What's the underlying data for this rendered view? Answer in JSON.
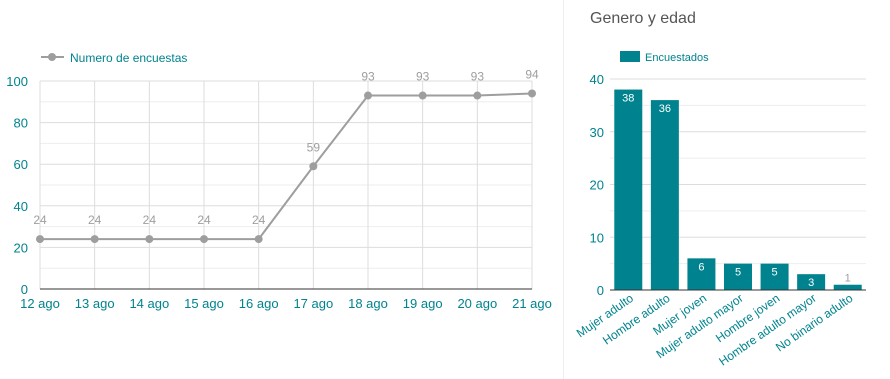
{
  "charts": {
    "left": {
      "legend_label": "Numero de encuestas",
      "line_color": "#9e9e9e",
      "axis_label_color": "#00838f"
    },
    "right": {
      "title": "Genero y edad",
      "legend_label": "Encuestados",
      "bar_color": "#00838f"
    }
  },
  "chart_data": [
    {
      "type": "line",
      "x": [
        "12 ago",
        "13 ago",
        "14 ago",
        "15 ago",
        "16 ago",
        "17 ago",
        "18 ago",
        "19 ago",
        "20 ago",
        "21 ago"
      ],
      "series": [
        {
          "name": "Numero de encuestas",
          "values": [
            24,
            24,
            24,
            24,
            24,
            59,
            93,
            93,
            93,
            94
          ]
        }
      ],
      "ylim": [
        0,
        100
      ],
      "yticks": [
        0,
        20,
        40,
        60,
        80,
        100
      ],
      "grid": true,
      "legend_position": "top-left"
    },
    {
      "type": "bar",
      "title": "Genero y edad",
      "categories": [
        "Mujer adulto",
        "Hombre adulto",
        "Mujer joven",
        "Mujer adulto mayor",
        "Hombre joven",
        "Hombre adulto mayor",
        "No binario adulto"
      ],
      "series": [
        {
          "name": "Encuestados",
          "values": [
            38,
            36,
            6,
            5,
            5,
            3,
            1
          ]
        }
      ],
      "ylim": [
        0,
        40
      ],
      "yticks": [
        0,
        10,
        20,
        30,
        40
      ],
      "grid": true,
      "legend_position": "top-left"
    }
  ]
}
